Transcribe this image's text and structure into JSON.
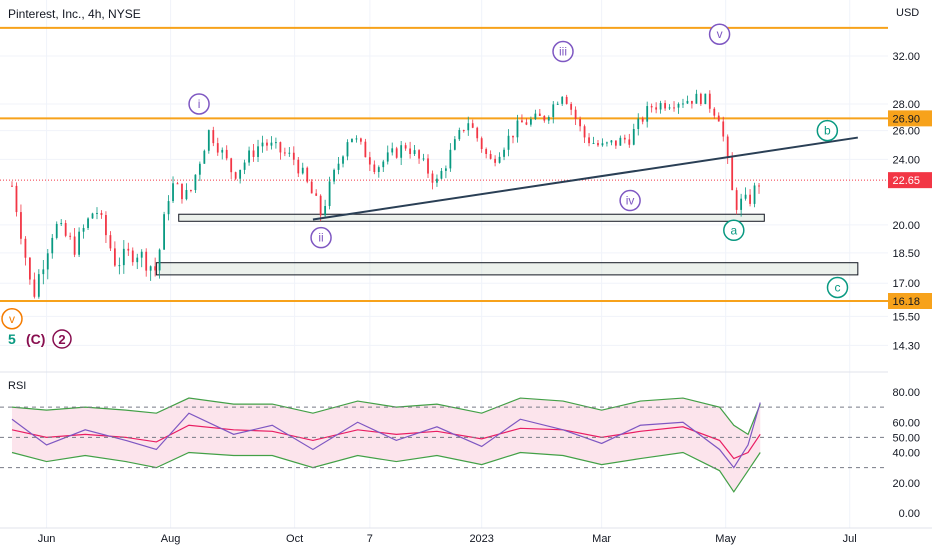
{
  "header": {
    "title": "Pinterest, Inc., 4h, NYSE",
    "currency": "USD"
  },
  "chart_data": [
    {
      "type": "line",
      "name": "price",
      "title": "Pinterest, Inc., 4h, NYSE",
      "ylabel": "USD",
      "y_ticks": [
        "32.00",
        "28.00",
        "26.00",
        "24.00",
        "20.00",
        "18.50",
        "17.00",
        "15.50",
        "14.30"
      ],
      "ylim": [
        13.8,
        37.0
      ],
      "x_ticks": [
        "Jun",
        "Aug",
        "Oct",
        "7",
        "2023",
        "Mar",
        "May",
        "Jul"
      ],
      "x": [
        "2022-05-15",
        "2022-05-25",
        "2022-06-05",
        "2022-06-15",
        "2022-06-25",
        "2022-07-05",
        "2022-07-15",
        "2022-07-25",
        "2022-08-01",
        "2022-08-10",
        "2022-08-20",
        "2022-09-01",
        "2022-09-15",
        "2022-10-01",
        "2022-10-14",
        "2022-10-28",
        "2022-11-10",
        "2022-11-25",
        "2022-12-10",
        "2022-12-25",
        "2023-01-05",
        "2023-01-20",
        "2023-02-01",
        "2023-02-10",
        "2023-02-20",
        "2023-03-01",
        "2023-03-15",
        "2023-03-25",
        "2023-04-05",
        "2023-04-20",
        "2023-04-28",
        "2023-05-05",
        "2023-05-12",
        "2023-05-18"
      ],
      "close": [
        22.3,
        16.3,
        20.0,
        18.8,
        21.0,
        18.0,
        18.6,
        17.6,
        22.4,
        21.6,
        26.0,
        23.0,
        25.2,
        24.0,
        20.6,
        25.8,
        23.5,
        25.0,
        22.5,
        26.8,
        23.8,
        26.5,
        27.0,
        29.0,
        25.6,
        24.8,
        25.5,
        27.8,
        28.2,
        28.5,
        27.0,
        21.2,
        21.3,
        22.65
      ],
      "horizontal_levels": [
        {
          "label": "",
          "value": 34.6,
          "color": "#f7a21b"
        },
        {
          "label": "26.90",
          "value": 26.9,
          "color": "#f7a21b"
        },
        {
          "label": "16.18",
          "value": 16.18,
          "color": "#f7a21b"
        }
      ],
      "last_price": {
        "label": "22.65",
        "value": 22.65,
        "color": "#f23645"
      },
      "trendline": {
        "from": [
          "2022-10-10",
          20.3
        ],
        "to": [
          "2023-07-05",
          25.5
        ],
        "color": "#2a3f55"
      },
      "zones": [
        {
          "from": "2022-08-05",
          "to": "2023-05-20",
          "low": 20.2,
          "high": 20.6
        },
        {
          "from": "2022-07-25",
          "to": "2023-07-05",
          "low": 17.4,
          "high": 18.0
        }
      ],
      "wave_labels": [
        {
          "text": "v",
          "x": "2022-05-15",
          "y": 15.4,
          "style": "orange"
        },
        {
          "text": "i",
          "x": "2022-08-15",
          "y": 28.0,
          "style": "purple"
        },
        {
          "text": "ii",
          "x": "2022-10-14",
          "y": 19.3,
          "style": "purple"
        },
        {
          "text": "iii",
          "x": "2023-02-10",
          "y": 32.4,
          "style": "purple"
        },
        {
          "text": "iv",
          "x": "2023-03-15",
          "y": 21.4,
          "style": "purple"
        },
        {
          "text": "v",
          "x": "2023-04-28",
          "y": 34.0,
          "style": "purple"
        },
        {
          "text": "a",
          "x": "2023-05-05",
          "y": 19.7,
          "style": "green"
        },
        {
          "text": "b",
          "x": "2023-06-20",
          "y": 26.0,
          "style": "green"
        },
        {
          "text": "c",
          "x": "2023-06-25",
          "y": 16.8,
          "style": "green"
        }
      ],
      "degree_labels": [
        {
          "text": "5",
          "color": "#089981"
        },
        {
          "text": "(C)",
          "color": "#880e4f"
        },
        {
          "text": "2",
          "color": "#880e4f"
        }
      ]
    },
    {
      "type": "line",
      "name": "RSI",
      "title": "RSI",
      "y_ticks": [
        "80.00",
        "60.00",
        "50.00",
        "40.00",
        "20.00",
        "0.00"
      ],
      "ylim": [
        0,
        90
      ],
      "levels": [
        70,
        50,
        30
      ],
      "x": [
        "2022-05-15",
        "2022-06-01",
        "2022-06-20",
        "2022-07-10",
        "2022-07-25",
        "2022-08-10",
        "2022-09-01",
        "2022-09-20",
        "2022-10-10",
        "2022-11-01",
        "2022-11-20",
        "2022-12-10",
        "2023-01-01",
        "2023-01-20",
        "2023-02-10",
        "2023-03-01",
        "2023-03-20",
        "2023-04-10",
        "2023-04-28",
        "2023-05-05",
        "2023-05-12",
        "2023-05-18"
      ],
      "rsi": [
        62,
        45,
        55,
        48,
        42,
        66,
        52,
        58,
        42,
        60,
        48,
        57,
        44,
        62,
        55,
        46,
        58,
        60,
        42,
        30,
        45,
        73
      ],
      "rsi_ma": [
        55,
        50,
        52,
        50,
        47,
        58,
        55,
        54,
        48,
        55,
        52,
        54,
        49,
        56,
        55,
        50,
        54,
        57,
        48,
        36,
        40,
        52
      ],
      "band_upper": [
        70,
        68,
        70,
        68,
        66,
        76,
        72,
        72,
        66,
        74,
        70,
        72,
        66,
        76,
        74,
        68,
        74,
        76,
        70,
        58,
        52,
        72
      ],
      "band_lower": [
        40,
        34,
        38,
        34,
        30,
        40,
        38,
        38,
        30,
        38,
        34,
        38,
        32,
        40,
        38,
        32,
        36,
        40,
        28,
        14,
        28,
        40
      ],
      "colors": {
        "rsi": "#7e57c2",
        "ma": "#e91e63",
        "band": "#43a047",
        "fill": "#fce4ec"
      }
    }
  ]
}
